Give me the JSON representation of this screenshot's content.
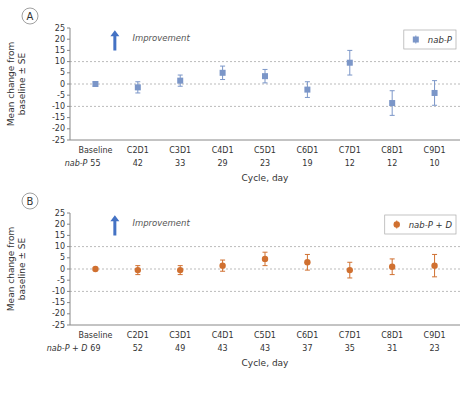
{
  "chart_data": [
    {
      "type": "scatter",
      "panel_label": "A",
      "categories": [
        "Baseline",
        "C2D1",
        "C3D1",
        "C4D1",
        "C5D1",
        "C6D1",
        "C7D1",
        "C8D1",
        "C9D1"
      ],
      "series": [
        {
          "name": "nab-P",
          "color": "#7b96c8",
          "marker": "square",
          "values": [
            0,
            -1.5,
            1.5,
            5.0,
            3.5,
            -2.5,
            9.5,
            -8.5,
            -4.0
          ],
          "errors": [
            1.0,
            2.5,
            2.5,
            3.0,
            3.0,
            3.5,
            5.5,
            5.5,
            5.5
          ],
          "row_label": "nab-P",
          "n_values": [
            55,
            42,
            33,
            29,
            23,
            19,
            12,
            12,
            10
          ]
        }
      ],
      "ylim": [
        -25,
        25
      ],
      "yticks": [
        -25,
        -20,
        -15,
        -10,
        -5,
        0,
        5,
        10,
        15,
        20,
        25
      ],
      "hlines": [
        -10,
        0,
        10
      ],
      "ylabel": "Mean change from\nbaseline ± SE",
      "xlabel": "Cycle, day",
      "annotations": [
        {
          "text": "Improvement",
          "color": "#4472c4"
        }
      ],
      "grid": false,
      "legend": "top-right"
    },
    {
      "type": "scatter",
      "panel_label": "B",
      "categories": [
        "Baseline",
        "C2D1",
        "C3D1",
        "C4D1",
        "C5D1",
        "C6D1",
        "C7D1",
        "C8D1",
        "C9D1"
      ],
      "series": [
        {
          "name": "nab-P + D",
          "color": "#d07030",
          "marker": "circle",
          "values": [
            0,
            -0.5,
            -0.5,
            1.5,
            4.5,
            3.0,
            -0.5,
            1.0,
            1.5
          ],
          "errors": [
            0.5,
            2.0,
            2.0,
            2.5,
            3.0,
            3.5,
            3.5,
            3.5,
            5.0
          ],
          "row_label": "nab-P + D",
          "n_values": [
            69,
            52,
            49,
            43,
            43,
            37,
            35,
            31,
            23
          ]
        }
      ],
      "ylim": [
        -25,
        25
      ],
      "yticks": [
        -25,
        -20,
        -15,
        -10,
        -5,
        0,
        5,
        10,
        15,
        20,
        25
      ],
      "hlines": [
        -10,
        0,
        10
      ],
      "ylabel": "Mean change from\nbaseline ± SE",
      "xlabel": "Cycle, day",
      "annotations": [
        {
          "text": "Improvement",
          "color": "#4472c4"
        }
      ],
      "grid": false,
      "legend": "top-right"
    }
  ]
}
